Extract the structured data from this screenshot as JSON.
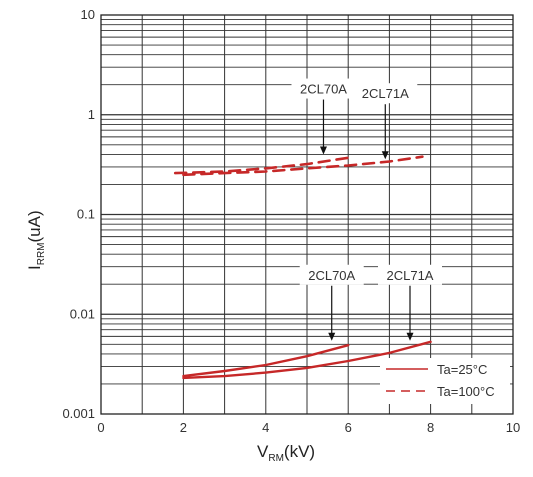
{
  "chart_data": {
    "type": "line",
    "xlabel": {
      "main": "V",
      "sub": "RM",
      "unit": "(kV)"
    },
    "ylabel": {
      "main": "I",
      "sub": "RRM",
      "unit": "(uA)"
    },
    "xlim": [
      0,
      10
    ],
    "ylim": [
      0.001,
      10
    ],
    "yscale": "log",
    "grid": true,
    "x_ticks": [
      "0",
      "2",
      "4",
      "6",
      "8",
      "10"
    ],
    "y_ticks": [
      "10",
      "1",
      "0.1",
      "0.01",
      "0.001"
    ],
    "series": [
      {
        "name": "2CL70A",
        "condition": "Ta=25°C",
        "style": "solid",
        "color": "#c62828",
        "x": [
          2,
          3,
          4,
          5,
          6
        ],
        "y": [
          0.0024,
          0.0027,
          0.0031,
          0.0038,
          0.0049
        ]
      },
      {
        "name": "2CL71A",
        "condition": "Ta=25°C",
        "style": "solid",
        "color": "#c62828",
        "x": [
          2,
          3,
          4,
          5,
          6,
          7,
          8
        ],
        "y": [
          0.0023,
          0.0024,
          0.0026,
          0.0029,
          0.0034,
          0.0041,
          0.0053
        ]
      },
      {
        "name": "2CL70A",
        "condition": "Ta=100°C",
        "style": "dashed",
        "color": "#c62828",
        "x": [
          1.8,
          3,
          4,
          5,
          6
        ],
        "y": [
          0.26,
          0.27,
          0.29,
          0.32,
          0.37
        ]
      },
      {
        "name": "2CL71A",
        "condition": "Ta=100°C",
        "style": "dashed",
        "color": "#c62828",
        "x": [
          2,
          3,
          4,
          5,
          6,
          7,
          7.8
        ],
        "y": [
          0.25,
          0.26,
          0.27,
          0.29,
          0.31,
          0.34,
          0.38
        ]
      }
    ],
    "annotations": [
      {
        "text": "2CL70A",
        "x": 5.4,
        "y": 0.39
      },
      {
        "text": "2CL71A",
        "x": 6.9,
        "y": 0.35
      },
      {
        "text": "2CL70A",
        "x": 5.6,
        "y": 0.0053
      },
      {
        "text": "2CL71A",
        "x": 7.5,
        "y": 0.0053
      }
    ],
    "legend": {
      "position": "bottom-right",
      "entries": [
        {
          "label": "Ta=25°C",
          "style": "solid"
        },
        {
          "label": "Ta=100°C",
          "style": "dashed"
        }
      ]
    }
  }
}
